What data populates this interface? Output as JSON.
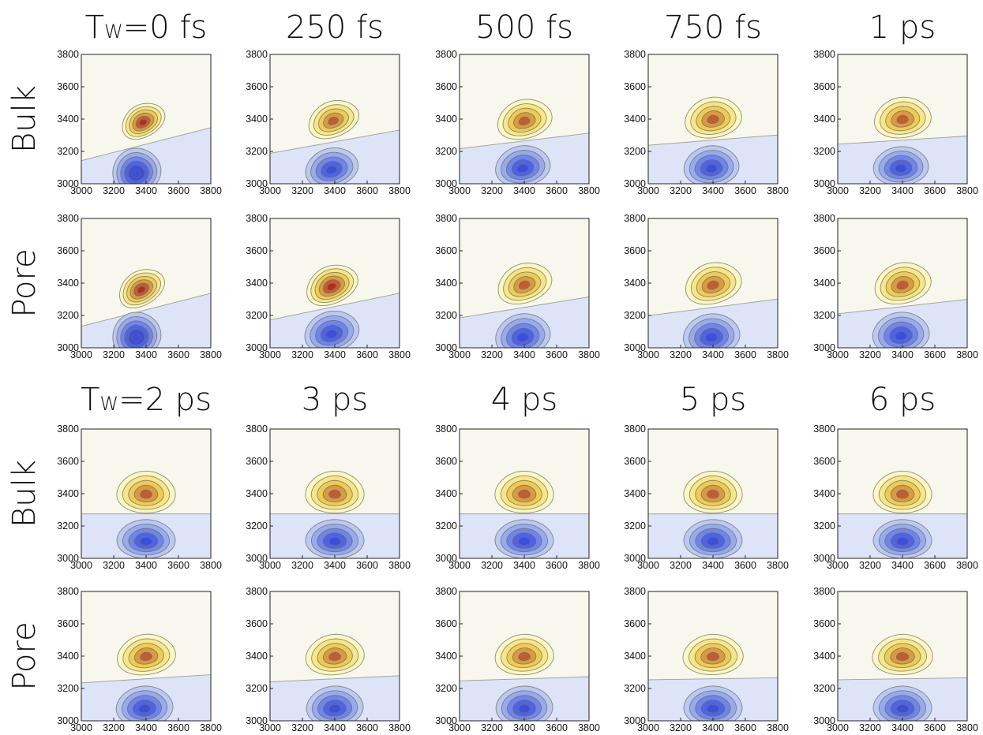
{
  "chart_data": {
    "type": "contour",
    "row_labels": [
      "Bulk",
      "Pore"
    ],
    "axis_ticks": [
      3000,
      3200,
      3400,
      3600,
      3800
    ],
    "xlim": [
      3000,
      3800
    ],
    "ylim": [
      3000,
      3800
    ],
    "grid": false,
    "colors": {
      "positive_levels": [
        "#fbf7c4",
        "#f6e58b",
        "#edcb57",
        "#d99a45",
        "#c25d33",
        "#b52a22"
      ],
      "negative_levels": [
        "#dde4f8",
        "#bac8f2",
        "#98aaee",
        "#7085ea",
        "#4f63e6",
        "#3a4ee2"
      ],
      "background": "#f7f7ee",
      "contour_line": "#6b6b5a"
    },
    "panel_sets": [
      {
        "waiting_times": [
          {
            "label": "Tw=0 fs",
            "prefix": "T",
            "sub": "W",
            "rest": "=0 fs"
          },
          {
            "label": "250 fs"
          },
          {
            "label": "500 fs"
          },
          {
            "label": "750 fs"
          },
          {
            "label": "1 ps"
          }
        ],
        "panels": {
          "Bulk": [
            {
              "pos": {
                "cx": 3380,
                "cy": 3390,
                "sx": 140,
                "sy": 100,
                "tilt": 30,
                "levels": 6
              },
              "neg": {
                "cx": 3340,
                "cy": 3080,
                "sx": 150,
                "sy": 140,
                "tilt": 20,
                "levels": 6
              }
            },
            {
              "pos": {
                "cx": 3390,
                "cy": 3400,
                "sx": 160,
                "sy": 110,
                "tilt": 22,
                "levels": 5
              },
              "neg": {
                "cx": 3380,
                "cy": 3100,
                "sx": 165,
                "sy": 120,
                "tilt": 15,
                "levels": 5
              }
            },
            {
              "pos": {
                "cx": 3400,
                "cy": 3400,
                "sx": 170,
                "sy": 120,
                "tilt": 15,
                "levels": 5
              },
              "neg": {
                "cx": 3390,
                "cy": 3110,
                "sx": 170,
                "sy": 125,
                "tilt": 10,
                "levels": 5
              }
            },
            {
              "pos": {
                "cx": 3400,
                "cy": 3410,
                "sx": 175,
                "sy": 125,
                "tilt": 10,
                "levels": 5
              },
              "neg": {
                "cx": 3390,
                "cy": 3110,
                "sx": 170,
                "sy": 125,
                "tilt": 6,
                "levels": 5
              }
            },
            {
              "pos": {
                "cx": 3400,
                "cy": 3410,
                "sx": 175,
                "sy": 125,
                "tilt": 8,
                "levels": 5
              },
              "neg": {
                "cx": 3390,
                "cy": 3110,
                "sx": 170,
                "sy": 120,
                "tilt": 4,
                "levels": 5
              }
            }
          ],
          "Pore": [
            {
              "pos": {
                "cx": 3370,
                "cy": 3370,
                "sx": 150,
                "sy": 105,
                "tilt": 32,
                "levels": 6
              },
              "neg": {
                "cx": 3340,
                "cy": 3080,
                "sx": 150,
                "sy": 140,
                "tilt": 20,
                "levels": 6
              }
            },
            {
              "pos": {
                "cx": 3380,
                "cy": 3390,
                "sx": 165,
                "sy": 115,
                "tilt": 25,
                "levels": 6
              },
              "neg": {
                "cx": 3380,
                "cy": 3100,
                "sx": 170,
                "sy": 125,
                "tilt": 15,
                "levels": 5
              }
            },
            {
              "pos": {
                "cx": 3400,
                "cy": 3400,
                "sx": 170,
                "sy": 120,
                "tilt": 20,
                "levels": 5
              },
              "neg": {
                "cx": 3390,
                "cy": 3080,
                "sx": 170,
                "sy": 130,
                "tilt": 12,
                "levels": 5
              }
            },
            {
              "pos": {
                "cx": 3400,
                "cy": 3400,
                "sx": 175,
                "sy": 125,
                "tilt": 16,
                "levels": 5
              },
              "neg": {
                "cx": 3390,
                "cy": 3080,
                "sx": 175,
                "sy": 130,
                "tilt": 8,
                "levels": 5
              }
            },
            {
              "pos": {
                "cx": 3400,
                "cy": 3400,
                "sx": 175,
                "sy": 125,
                "tilt": 14,
                "levels": 5
              },
              "neg": {
                "cx": 3390,
                "cy": 3090,
                "sx": 175,
                "sy": 130,
                "tilt": 6,
                "levels": 5
              }
            }
          ]
        }
      },
      {
        "waiting_times": [
          {
            "label": "Tw=2 ps",
            "prefix": "T",
            "sub": "W",
            "rest": "=2 ps"
          },
          {
            "label": "3 ps"
          },
          {
            "label": "4 ps"
          },
          {
            "label": "5 ps"
          },
          {
            "label": "6 ps"
          }
        ],
        "panels": {
          "Bulk": [
            {
              "pos": {
                "cx": 3400,
                "cy": 3410,
                "sx": 180,
                "sy": 130,
                "tilt": 0,
                "levels": 5
              },
              "neg": {
                "cx": 3400,
                "cy": 3120,
                "sx": 180,
                "sy": 120,
                "tilt": 0,
                "levels": 5
              }
            },
            {
              "pos": {
                "cx": 3400,
                "cy": 3410,
                "sx": 180,
                "sy": 130,
                "tilt": 0,
                "levels": 5
              },
              "neg": {
                "cx": 3400,
                "cy": 3120,
                "sx": 180,
                "sy": 120,
                "tilt": 0,
                "levels": 5
              }
            },
            {
              "pos": {
                "cx": 3400,
                "cy": 3410,
                "sx": 180,
                "sy": 130,
                "tilt": 0,
                "levels": 5
              },
              "neg": {
                "cx": 3400,
                "cy": 3120,
                "sx": 180,
                "sy": 120,
                "tilt": 0,
                "levels": 5
              }
            },
            {
              "pos": {
                "cx": 3400,
                "cy": 3410,
                "sx": 180,
                "sy": 130,
                "tilt": 0,
                "levels": 5
              },
              "neg": {
                "cx": 3400,
                "cy": 3120,
                "sx": 180,
                "sy": 120,
                "tilt": 0,
                "levels": 5
              }
            },
            {
              "pos": {
                "cx": 3400,
                "cy": 3410,
                "sx": 180,
                "sy": 130,
                "tilt": 0,
                "levels": 5
              },
              "neg": {
                "cx": 3400,
                "cy": 3120,
                "sx": 180,
                "sy": 120,
                "tilt": 0,
                "levels": 5
              }
            }
          ],
          "Pore": [
            {
              "pos": {
                "cx": 3400,
                "cy": 3410,
                "sx": 180,
                "sy": 125,
                "tilt": 8,
                "levels": 5
              },
              "neg": {
                "cx": 3390,
                "cy": 3090,
                "sx": 175,
                "sy": 125,
                "tilt": 4,
                "levels": 5
              }
            },
            {
              "pos": {
                "cx": 3400,
                "cy": 3410,
                "sx": 180,
                "sy": 125,
                "tilt": 6,
                "levels": 5
              },
              "neg": {
                "cx": 3400,
                "cy": 3090,
                "sx": 175,
                "sy": 125,
                "tilt": 3,
                "levels": 5
              }
            },
            {
              "pos": {
                "cx": 3400,
                "cy": 3410,
                "sx": 180,
                "sy": 125,
                "tilt": 4,
                "levels": 5
              },
              "neg": {
                "cx": 3400,
                "cy": 3090,
                "sx": 175,
                "sy": 125,
                "tilt": 2,
                "levels": 5
              }
            },
            {
              "pos": {
                "cx": 3400,
                "cy": 3410,
                "sx": 185,
                "sy": 125,
                "tilt": 2,
                "levels": 5
              },
              "neg": {
                "cx": 3400,
                "cy": 3090,
                "sx": 180,
                "sy": 125,
                "tilt": 0,
                "levels": 5
              }
            },
            {
              "pos": {
                "cx": 3400,
                "cy": 3410,
                "sx": 185,
                "sy": 125,
                "tilt": 2,
                "levels": 5
              },
              "neg": {
                "cx": 3400,
                "cy": 3090,
                "sx": 180,
                "sy": 125,
                "tilt": 0,
                "levels": 5
              }
            }
          ]
        }
      }
    ]
  }
}
